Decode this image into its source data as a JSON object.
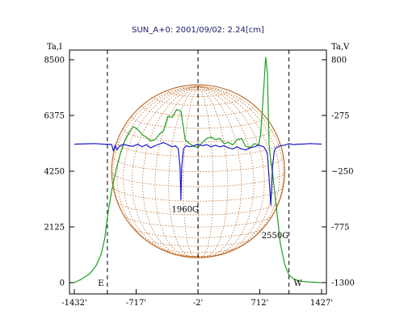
{
  "chart_data": {
    "type": "line",
    "title": "SUN_A+0: 2001/09/02: 2.24[cm]",
    "left_axis_label": "Ta,I",
    "right_axis_label": "Ta,V",
    "xlim": [
      -1432,
      1427
    ],
    "x_ticks": [
      "-1432'",
      "-717'",
      "-2'",
      "712'",
      "1427'"
    ],
    "left_ylim": [
      0,
      8500
    ],
    "left_ticks": [
      "8500",
      "6375",
      "4250",
      "2125",
      "0"
    ],
    "right_ylim": [
      -1300,
      800
    ],
    "right_ticks": [
      "800",
      "-275",
      "~250",
      "-775",
      "-1300"
    ],
    "limb_markers": [
      {
        "label": "E",
        "x": -1050
      },
      {
        "label": "-2'",
        "x": -2
      },
      {
        "label": "W",
        "x": 1050
      }
    ],
    "annotations": [
      {
        "text": "1960G",
        "x": -150,
        "y_I": 2700
      },
      {
        "text": "2550G",
        "x": 890,
        "y_I": 1700
      }
    ],
    "colors": {
      "intensity": "#1ea01e",
      "polarization": "#1a1acc",
      "disk": "#c07030",
      "markers": "#000000"
    },
    "series": [
      {
        "name": "I",
        "axis": "left",
        "color": "#1ea01e",
        "x": [
          -1432,
          -1350,
          -1250,
          -1180,
          -1120,
          -1080,
          -1050,
          -1000,
          -950,
          -900,
          -850,
          -800,
          -750,
          -700,
          -650,
          -600,
          -550,
          -500,
          -450,
          -400,
          -350,
          -300,
          -250,
          -200,
          -150,
          -100,
          -50,
          0,
          50,
          100,
          150,
          200,
          250,
          300,
          350,
          400,
          450,
          500,
          550,
          600,
          650,
          700,
          720,
          740,
          760,
          780,
          800,
          820,
          840,
          860,
          900,
          950,
          1000,
          1050,
          1100,
          1150,
          1200,
          1300,
          1427
        ],
        "y": [
          0,
          130,
          350,
          650,
          1100,
          1700,
          2500,
          3500,
          4300,
          4900,
          5400,
          5700,
          5950,
          5850,
          5650,
          5550,
          5400,
          5450,
          5650,
          5800,
          6350,
          6300,
          6600,
          6550,
          5450,
          5300,
          5200,
          5150,
          5350,
          5500,
          5550,
          5450,
          5500,
          5300,
          5350,
          5250,
          5450,
          5500,
          5200,
          5150,
          5300,
          5250,
          5600,
          6500,
          7500,
          8600,
          8000,
          5300,
          4600,
          4200,
          3000,
          1500,
          700,
          300,
          150,
          80,
          50,
          20,
          0
        ]
      },
      {
        "name": "V",
        "axis": "right",
        "color": "#1a1acc",
        "x": [
          -1432,
          -1300,
          -1200,
          -1100,
          -1000,
          -980,
          -960,
          -940,
          -900,
          -850,
          -800,
          -750,
          -700,
          -650,
          -600,
          -550,
          -500,
          -450,
          -400,
          -350,
          -300,
          -260,
          -230,
          -210,
          -200,
          -190,
          -170,
          -140,
          -100,
          -50,
          0,
          50,
          100,
          150,
          200,
          250,
          300,
          350,
          400,
          450,
          500,
          550,
          600,
          650,
          700,
          760,
          800,
          820,
          840,
          860,
          880,
          900,
          950,
          1000,
          1050,
          1100,
          1150,
          1200,
          1300,
          1427
        ],
        "y": [
          5,
          8,
          10,
          5,
          2,
          -60,
          -5,
          -50,
          -5,
          0,
          -10,
          -15,
          5,
          -20,
          0,
          -30,
          -10,
          5,
          20,
          0,
          -20,
          -10,
          -40,
          -210,
          -520,
          -210,
          -40,
          -10,
          -20,
          -10,
          5,
          -10,
          0,
          -20,
          -5,
          -20,
          -10,
          -30,
          -40,
          -20,
          -40,
          -50,
          -30,
          -20,
          -5,
          -20,
          -80,
          -310,
          -570,
          -200,
          -60,
          -30,
          -10,
          -5,
          10,
          0,
          5,
          5,
          10,
          5
        ]
      }
    ]
  }
}
